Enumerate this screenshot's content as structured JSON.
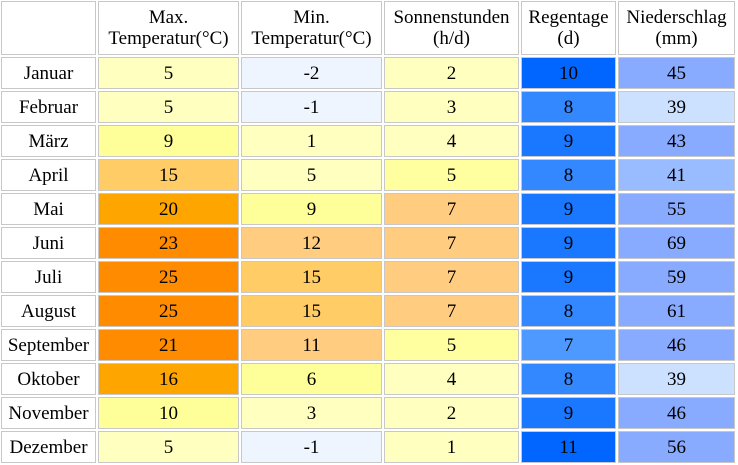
{
  "headers": [
    {
      "line1": "",
      "line2": ""
    },
    {
      "line1": "Max.",
      "line2": "Temperatur(°C)"
    },
    {
      "line1": "Min.",
      "line2": "Temperatur(°C)"
    },
    {
      "line1": "Sonnenstunden",
      "line2": "(h/d)"
    },
    {
      "line1": "Regentage",
      "line2": "(d)"
    },
    {
      "line1": "Niederschlag",
      "line2": "(mm)"
    }
  ],
  "rows": [
    {
      "month": "Januar",
      "max": "5",
      "min": "-2",
      "sun": "2",
      "rain_days": "10",
      "precip": "45"
    },
    {
      "month": "Februar",
      "max": "5",
      "min": "-1",
      "sun": "3",
      "rain_days": "8",
      "precip": "39"
    },
    {
      "month": "März",
      "max": "9",
      "min": "1",
      "sun": "4",
      "rain_days": "9",
      "precip": "43"
    },
    {
      "month": "April",
      "max": "15",
      "min": "5",
      "sun": "5",
      "rain_days": "8",
      "precip": "41"
    },
    {
      "month": "Mai",
      "max": "20",
      "min": "9",
      "sun": "7",
      "rain_days": "9",
      "precip": "55"
    },
    {
      "month": "Juni",
      "max": "23",
      "min": "12",
      "sun": "7",
      "rain_days": "9",
      "precip": "69"
    },
    {
      "month": "Juli",
      "max": "25",
      "min": "15",
      "sun": "7",
      "rain_days": "9",
      "precip": "59"
    },
    {
      "month": "August",
      "max": "25",
      "min": "15",
      "sun": "7",
      "rain_days": "8",
      "precip": "61"
    },
    {
      "month": "September",
      "max": "21",
      "min": "11",
      "sun": "5",
      "rain_days": "7",
      "precip": "46"
    },
    {
      "month": "Oktober",
      "max": "16",
      "min": "6",
      "sun": "4",
      "rain_days": "8",
      "precip": "39"
    },
    {
      "month": "November",
      "max": "10",
      "min": "3",
      "sun": "2",
      "rain_days": "9",
      "precip": "46"
    },
    {
      "month": "Dezember",
      "max": "5",
      "min": "-1",
      "sun": "1",
      "rain_days": "11",
      "precip": "56"
    }
  ],
  "colors": {
    "max": [
      "#ffffc0",
      "#ffffc0",
      "#ffff99",
      "#ffcc66",
      "#ffa500",
      "#ff8c00",
      "#ff8c00",
      "#ff8c00",
      "#ff8c00",
      "#ffa500",
      "#ffff99",
      "#ffffc0"
    ],
    "min": [
      "#eef5ff",
      "#eef5ff",
      "#ffffc0",
      "#ffffc0",
      "#ffff99",
      "#ffcc80",
      "#ffcc66",
      "#ffcc66",
      "#ffcc80",
      "#ffff99",
      "#ffffc0",
      "#eef5ff"
    ],
    "sun": [
      "#ffffc0",
      "#ffffc0",
      "#ffffc0",
      "#ffffa0",
      "#ffcc80",
      "#ffcc80",
      "#ffcc80",
      "#ffcc80",
      "#ffffa0",
      "#ffffc0",
      "#ffffc0",
      "#ffffc0"
    ],
    "rain_days": [
      "#0066ff",
      "#3388ff",
      "#1a77ff",
      "#3388ff",
      "#1a77ff",
      "#1a77ff",
      "#1a77ff",
      "#3388ff",
      "#4d99ff",
      "#3388ff",
      "#1a77ff",
      "#0066ff"
    ],
    "precip": [
      "#88aaff",
      "#cce0ff",
      "#88aaff",
      "#99bbff",
      "#88aaff",
      "#88aaff",
      "#88aaff",
      "#88aaff",
      "#88aaff",
      "#cce0ff",
      "#88aaff",
      "#88aaff"
    ]
  }
}
